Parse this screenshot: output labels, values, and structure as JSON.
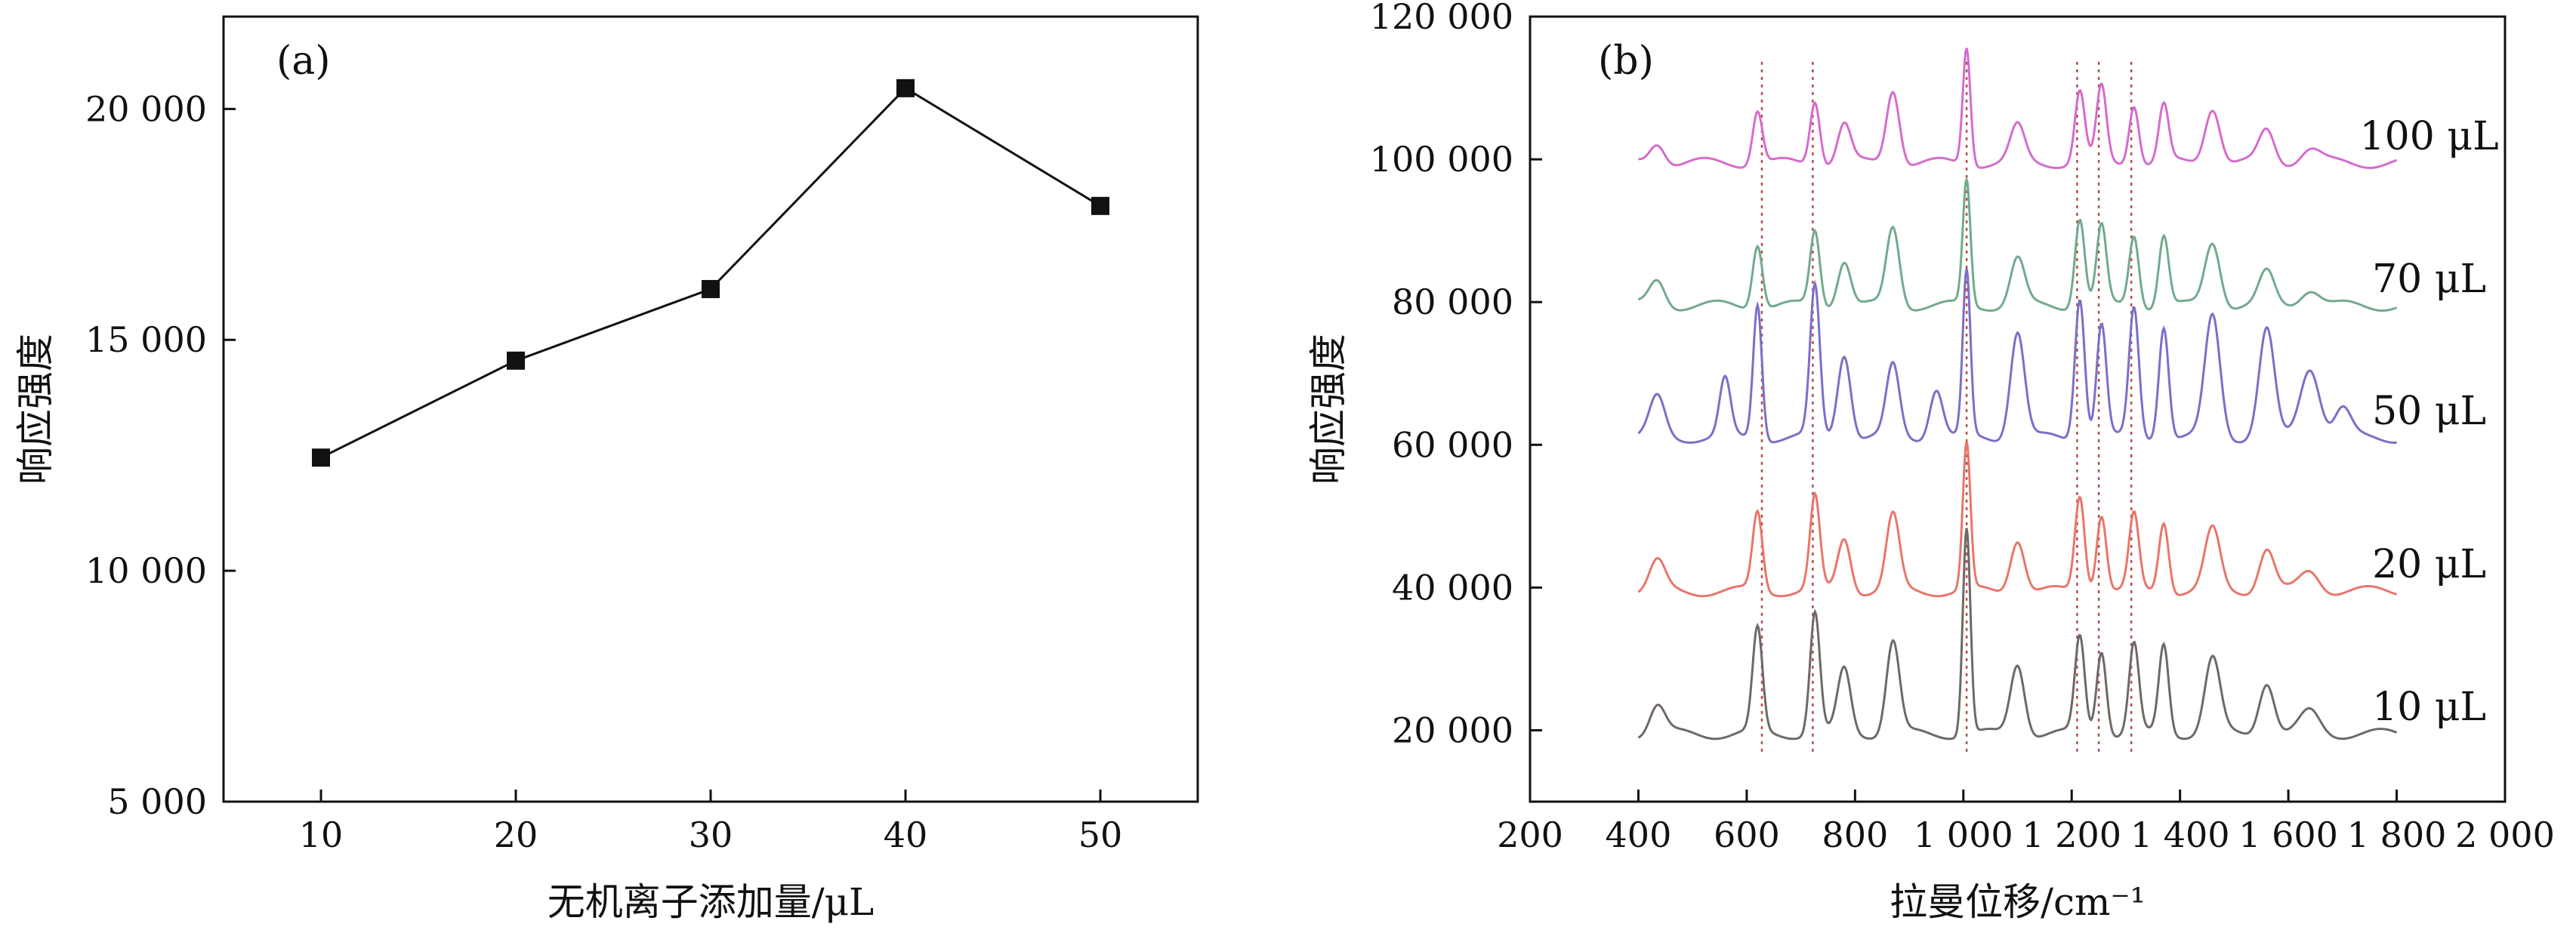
{
  "chart_data": [
    {
      "panel": "(a)",
      "type": "line",
      "xlabel": "无机离子添加量/μL",
      "ylabel": "响应强度",
      "x": [
        10,
        20,
        30,
        40,
        50
      ],
      "values": [
        12450,
        14550,
        16100,
        20450,
        17900
      ],
      "xlim": [
        5,
        55
      ],
      "ylim": [
        5000,
        22000
      ],
      "xticks": [
        "10",
        "20",
        "30",
        "40",
        "50"
      ],
      "yticks": [
        "5 000",
        "10 000",
        "15 000",
        "20 000"
      ],
      "grid": false,
      "marker": "square"
    },
    {
      "panel": "(b)",
      "type": "line",
      "xlabel": "拉曼位移/cm⁻¹",
      "ylabel": "响应强度",
      "xlim": [
        200,
        2000
      ],
      "ylim": [
        10000,
        120000
      ],
      "xticks": [
        "200",
        "400",
        "600",
        "800",
        "1 000",
        "1 200",
        "1 400",
        "1 600",
        "1 800",
        "2 000"
      ],
      "yticks": [
        "20 000",
        "40 000",
        "60 000",
        "80 000",
        "100 000",
        "120 000"
      ],
      "grid": false,
      "reference_lines_x": [
        628,
        722,
        1006,
        1210,
        1250,
        1310
      ],
      "series": [
        {
          "name": "10 μL",
          "color": "#706868",
          "baseline": 19500,
          "peaks": [
            [
              435,
              4000,
              14
            ],
            [
              620,
              14500,
              9
            ],
            [
              726,
              17000,
              9
            ],
            [
              780,
              9000,
              12
            ],
            [
              870,
              13000,
              12
            ],
            [
              1006,
              29000,
              7
            ],
            [
              1100,
              10000,
              13
            ],
            [
              1215,
              13500,
              9
            ],
            [
              1255,
              12000,
              9
            ],
            [
              1315,
              12500,
              9
            ],
            [
              1370,
              12500,
              9
            ],
            [
              1460,
              10500,
              14
            ],
            [
              1560,
              7500,
              14
            ],
            [
              1640,
              3000,
              18
            ]
          ]
        },
        {
          "name": "20 μL",
          "color": "#e8766a",
          "baseline": 39500,
          "peaks": [
            [
              435,
              4000,
              14
            ],
            [
              620,
              11000,
              9
            ],
            [
              726,
              13000,
              9
            ],
            [
              780,
              7500,
              12
            ],
            [
              870,
              10500,
              12
            ],
            [
              1006,
              20500,
              7
            ],
            [
              1100,
              7500,
              13
            ],
            [
              1215,
              13500,
              9
            ],
            [
              1255,
              11000,
              9
            ],
            [
              1315,
              10500,
              9
            ],
            [
              1370,
              10000,
              9
            ],
            [
              1460,
              8500,
              14
            ],
            [
              1560,
              6000,
              14
            ],
            [
              1640,
              2800,
              18
            ]
          ]
        },
        {
          "name": "50 μL",
          "color": "#7b6fc8",
          "baseline": 61000,
          "peaks": [
            [
              435,
              5500,
              14
            ],
            [
              560,
              8000,
              10
            ],
            [
              620,
              19000,
              8
            ],
            [
              726,
              21000,
              9
            ],
            [
              780,
              12000,
              12
            ],
            [
              870,
              10000,
              12
            ],
            [
              950,
              7000,
              12
            ],
            [
              1006,
              23000,
              7
            ],
            [
              1100,
              15000,
              13
            ],
            [
              1215,
              20000,
              9
            ],
            [
              1255,
              16000,
              9
            ],
            [
              1315,
              18000,
              9
            ],
            [
              1370,
              16000,
              9
            ],
            [
              1460,
              17000,
              14
            ],
            [
              1560,
              15000,
              14
            ],
            [
              1640,
              10000,
              18
            ],
            [
              1700,
              4000,
              15
            ]
          ]
        },
        {
          "name": "70 μL",
          "color": "#72aa8e",
          "baseline": 79500,
          "peaks": [
            [
              435,
              3500,
              14
            ],
            [
              620,
              9000,
              9
            ],
            [
              726,
              10500,
              9
            ],
            [
              780,
              6500,
              12
            ],
            [
              870,
              11000,
              12
            ],
            [
              1006,
              17500,
              7
            ],
            [
              1100,
              6500,
              13
            ],
            [
              1215,
              12500,
              9
            ],
            [
              1255,
              11000,
              9
            ],
            [
              1315,
              10000,
              9
            ],
            [
              1370,
              10000,
              9
            ],
            [
              1460,
              9000,
              14
            ],
            [
              1560,
              4500,
              14
            ],
            [
              1640,
              2500,
              18
            ]
          ]
        },
        {
          "name": "100 μL",
          "color": "#d56ccd",
          "baseline": 99500,
          "peaks": [
            [
              435,
              3000,
              14
            ],
            [
              620,
              7500,
              9
            ],
            [
              726,
              9000,
              9
            ],
            [
              780,
              5500,
              12
            ],
            [
              870,
              10500,
              12
            ],
            [
              1006,
              16500,
              7
            ],
            [
              1100,
              5000,
              13
            ],
            [
              1215,
              10000,
              9
            ],
            [
              1255,
              10500,
              9
            ],
            [
              1315,
              8500,
              9
            ],
            [
              1370,
              8000,
              9
            ],
            [
              1460,
              8000,
              14
            ],
            [
              1560,
              4500,
              14
            ],
            [
              1640,
              2000,
              18
            ]
          ]
        }
      ]
    }
  ]
}
